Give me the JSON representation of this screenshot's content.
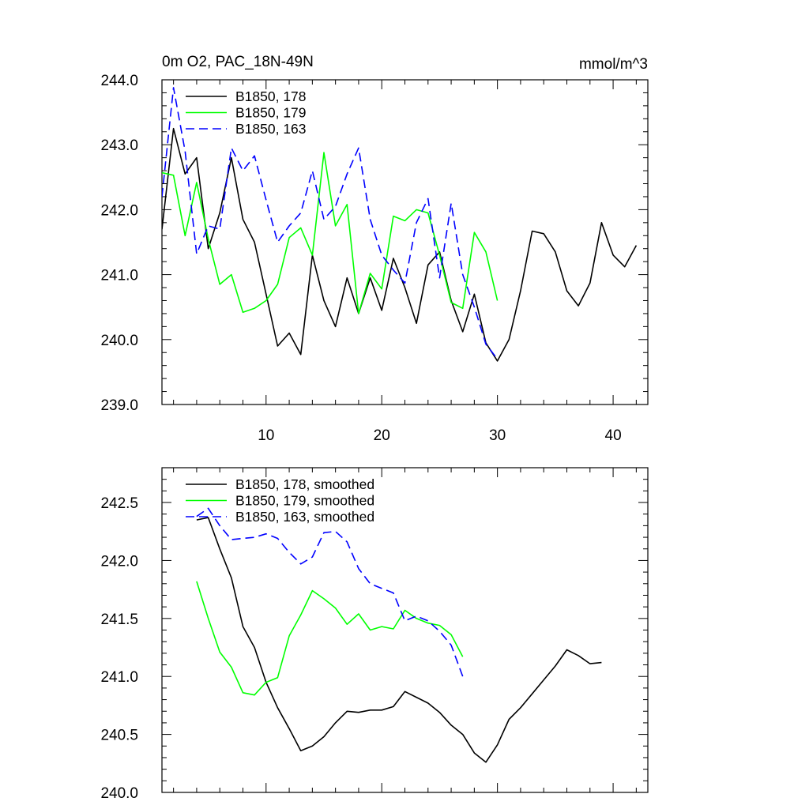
{
  "chart_data": [
    {
      "type": "line",
      "title": "0m O2, PAC_18N-49N",
      "units": "mmol/m^3",
      "xlim": [
        1,
        43
      ],
      "ylim": [
        239.0,
        244.0
      ],
      "yticks": [
        "239.0",
        "240.0",
        "241.0",
        "242.0",
        "243.0",
        "244.0"
      ],
      "xticks": [
        "10",
        "20",
        "30",
        "40"
      ],
      "legend_position": "top-left",
      "series": [
        {
          "name": "B1850, 178",
          "color": "#000000",
          "dash": "solid",
          "x": [
            1,
            2,
            3,
            4,
            5,
            6,
            7,
            8,
            9,
            10,
            11,
            12,
            13,
            14,
            15,
            16,
            17,
            18,
            19,
            20,
            21,
            22,
            23,
            24,
            25,
            26,
            27,
            28,
            29,
            30,
            31,
            32,
            33,
            34,
            35,
            36,
            37,
            38,
            39,
            40,
            41,
            42
          ],
          "values": [
            241.7,
            243.25,
            242.55,
            242.8,
            241.4,
            241.95,
            242.8,
            241.85,
            241.5,
            240.7,
            239.9,
            240.1,
            239.77,
            241.3,
            240.6,
            240.2,
            240.95,
            240.4,
            240.95,
            240.45,
            241.25,
            240.8,
            240.25,
            241.15,
            241.35,
            240.6,
            240.12,
            240.7,
            239.95,
            239.67,
            240.0,
            240.75,
            241.67,
            241.63,
            241.35,
            240.75,
            240.52,
            240.87,
            241.8,
            241.3,
            241.12,
            241.45
          ]
        },
        {
          "name": "B1850, 179",
          "color": "#00ff00",
          "dash": "solid",
          "x": [
            1,
            2,
            3,
            4,
            5,
            6,
            7,
            8,
            9,
            10,
            11,
            12,
            13,
            14,
            15,
            16,
            17,
            18,
            19,
            20,
            21,
            22,
            23,
            24,
            25,
            26,
            27,
            28,
            29,
            30
          ],
          "values": [
            242.57,
            242.53,
            241.6,
            242.42,
            241.55,
            240.85,
            241.0,
            240.42,
            240.48,
            240.6,
            240.85,
            241.57,
            241.72,
            241.3,
            242.88,
            241.75,
            242.08,
            240.4,
            241.02,
            240.78,
            241.9,
            241.83,
            242.0,
            241.95,
            241.3,
            240.57,
            240.48,
            241.65,
            241.35,
            240.6
          ]
        },
        {
          "name": "B1850, 163",
          "color": "#0000ff",
          "dash": "dashed",
          "x": [
            1,
            2,
            3,
            4,
            5,
            6,
            7,
            8,
            9,
            10,
            11,
            12,
            13,
            14,
            15,
            16,
            17,
            18,
            19,
            20,
            21,
            22,
            23,
            24,
            25,
            26,
            27,
            28,
            29,
            30
          ],
          "values": [
            242.2,
            243.88,
            242.9,
            241.32,
            241.75,
            241.7,
            242.95,
            242.6,
            242.83,
            242.15,
            241.5,
            241.75,
            241.95,
            242.6,
            241.85,
            242.05,
            242.55,
            242.95,
            241.85,
            241.3,
            241.07,
            240.87,
            241.8,
            242.17,
            240.95,
            242.1,
            241.0,
            240.5,
            239.93,
            239.7
          ]
        }
      ]
    },
    {
      "type": "line",
      "xlim": [
        1,
        43
      ],
      "ylim": [
        240.0,
        242.8
      ],
      "yticks": [
        "240.0",
        "240.5",
        "241.0",
        "241.5",
        "242.0",
        "242.5"
      ],
      "legend_position": "top-left",
      "series": [
        {
          "name": "B1850, 178, smoothed",
          "color": "#000000",
          "dash": "solid",
          "x": [
            4,
            5,
            6,
            7,
            8,
            9,
            10,
            11,
            12,
            13,
            14,
            15,
            16,
            17,
            18,
            19,
            20,
            21,
            22,
            23,
            24,
            25,
            26,
            27,
            28,
            29,
            30,
            31,
            32,
            33,
            34,
            35,
            36,
            37,
            38,
            39
          ],
          "values": [
            242.35,
            242.37,
            242.1,
            241.85,
            241.43,
            241.25,
            240.95,
            240.73,
            240.55,
            240.36,
            240.4,
            240.48,
            240.6,
            240.7,
            240.69,
            240.71,
            240.71,
            240.74,
            240.87,
            240.82,
            240.77,
            240.69,
            240.58,
            240.5,
            240.34,
            240.26,
            240.41,
            240.63,
            240.73,
            240.85,
            240.97,
            241.09,
            241.23,
            241.18,
            241.11,
            241.12
          ]
        },
        {
          "name": "B1850, 179, smoothed",
          "color": "#00ff00",
          "dash": "solid",
          "x": [
            4,
            5,
            6,
            7,
            8,
            9,
            10,
            11,
            12,
            13,
            14,
            15,
            16,
            17,
            18,
            19,
            20,
            21,
            22,
            23,
            24,
            25,
            26,
            27
          ],
          "values": [
            241.82,
            241.5,
            241.21,
            241.08,
            240.86,
            240.84,
            240.95,
            240.99,
            241.35,
            241.53,
            241.74,
            241.67,
            241.59,
            241.45,
            241.54,
            241.4,
            241.43,
            241.41,
            241.57,
            241.5,
            241.46,
            241.44,
            241.36,
            241.17
          ]
        },
        {
          "name": "B1850, 163, smoothed",
          "color": "#0000ff",
          "dash": "dashed",
          "x": [
            4,
            5,
            6,
            7,
            8,
            9,
            10,
            11,
            12,
            13,
            14,
            15,
            16,
            17,
            18,
            19,
            20,
            21,
            22,
            23,
            24,
            25,
            26,
            27
          ],
          "values": [
            242.38,
            242.45,
            242.3,
            242.18,
            242.19,
            242.2,
            242.23,
            242.19,
            242.07,
            241.97,
            242.03,
            242.24,
            242.25,
            242.16,
            241.93,
            241.8,
            241.76,
            241.72,
            241.48,
            241.52,
            241.48,
            241.39,
            241.27,
            241.0
          ]
        }
      ]
    }
  ]
}
